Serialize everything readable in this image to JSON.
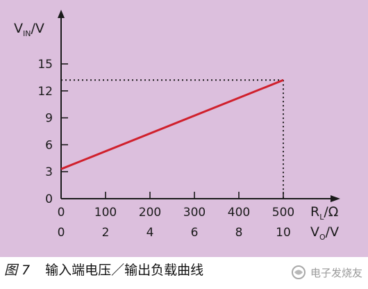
{
  "colors": {
    "panel_bg": "#dcbfdd",
    "line": "#d0202c",
    "axis": "#1a1a1a",
    "guide": "#1a1a1a"
  },
  "chart_data": {
    "type": "line",
    "ylabel": {
      "main": "V",
      "sub": "IN",
      "unit": "/V"
    },
    "xlabel_primary": {
      "main": "R",
      "sub": "L",
      "unit": "/Ω"
    },
    "xlabel_secondary": {
      "main": "V",
      "sub": "O",
      "unit": "/V"
    },
    "yticks": [
      "0",
      "3",
      "6",
      "9",
      "12",
      "15"
    ],
    "ytick_values": [
      0,
      3,
      6,
      9,
      12,
      15
    ],
    "xticks_primary": [
      "0",
      "100",
      "200",
      "300",
      "400",
      "500"
    ],
    "xtick_values": [
      0,
      100,
      200,
      300,
      400,
      500
    ],
    "xticks_secondary": [
      "0",
      "2",
      "4",
      "6",
      "8",
      "10"
    ],
    "xlim": [
      0,
      500
    ],
    "ylim": [
      0,
      15
    ],
    "series": [
      {
        "x": [
          0,
          500
        ],
        "y": [
          3.3,
          13.2
        ]
      }
    ],
    "guide_point": {
      "x": 500,
      "y": 13.2
    },
    "grid": false
  },
  "caption": {
    "number": "图 7",
    "text": "输入端电压／输出负载曲线"
  },
  "watermark": {
    "text": "电子发烧友",
    "icon": "swirl-logo-icon"
  }
}
